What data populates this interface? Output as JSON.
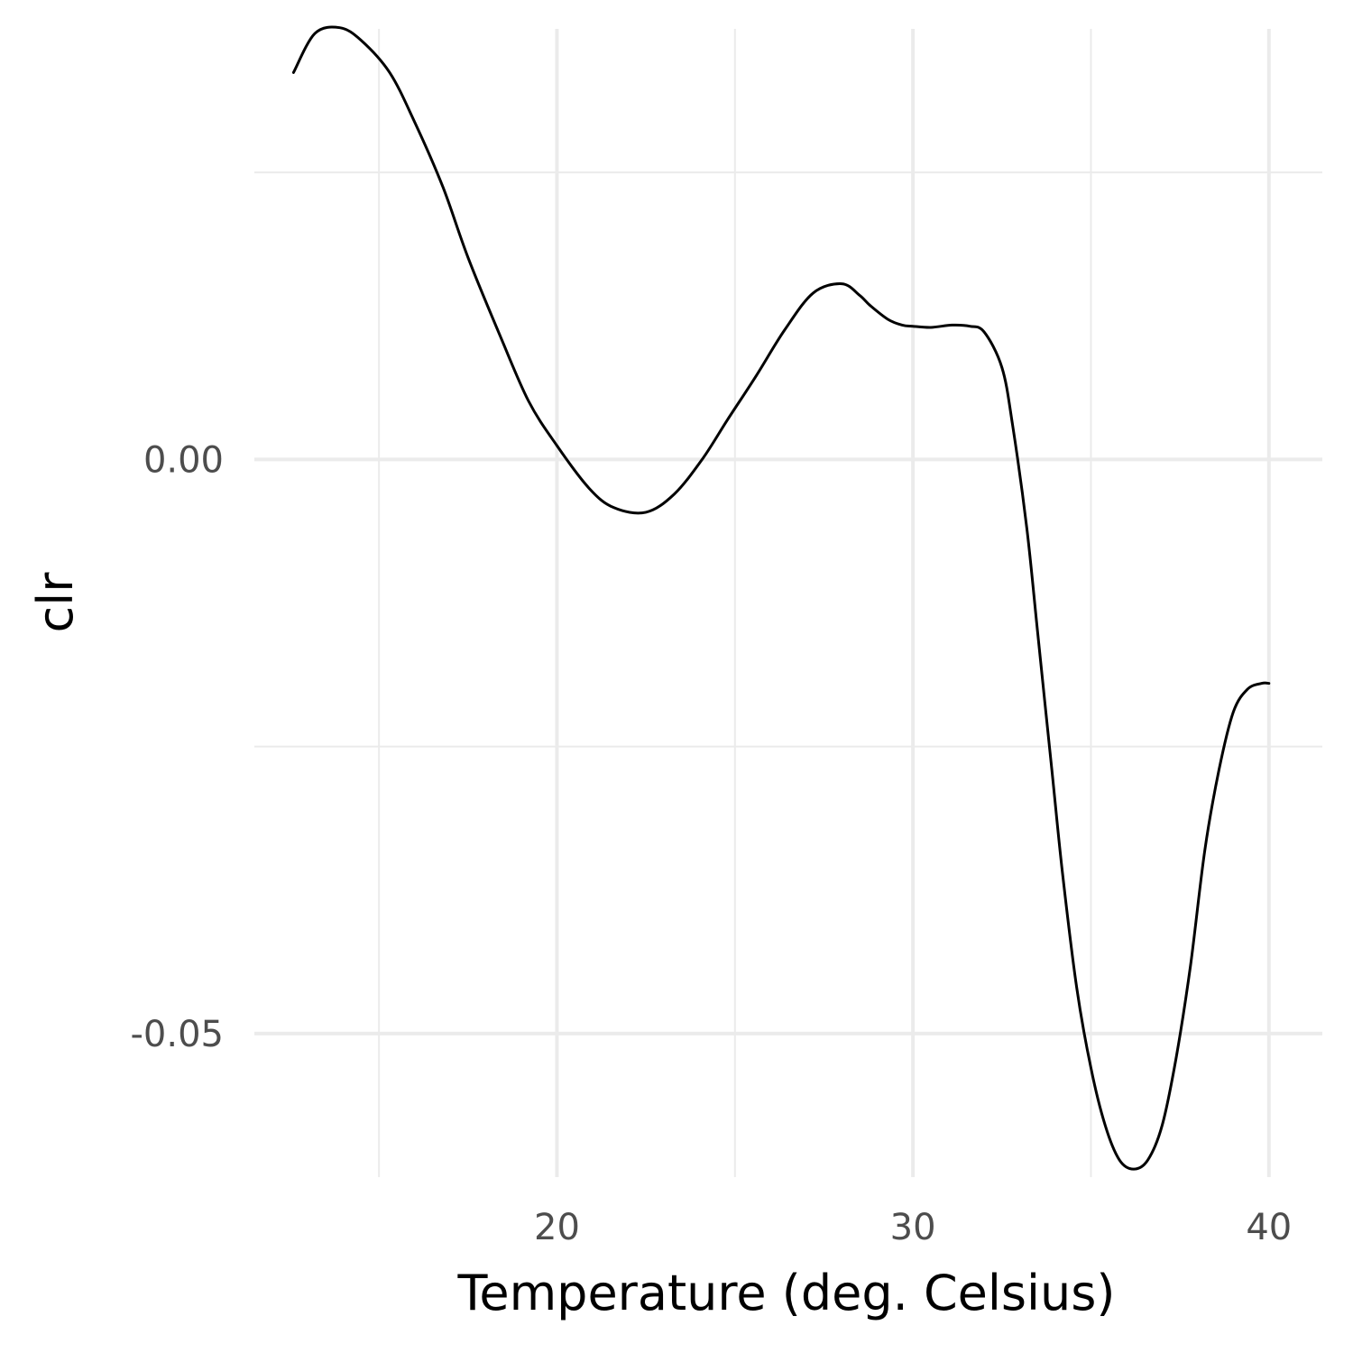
{
  "chart_data": {
    "type": "line",
    "title": "",
    "xlabel": "Temperature (deg. Celsius)",
    "ylabel": "clr",
    "xlim": [
      11.5,
      41.5
    ],
    "ylim": [
      -0.0625,
      0.0375
    ],
    "x_major_ticks": [
      20,
      30,
      40
    ],
    "x_minor_ticks": [
      15,
      25,
      35
    ],
    "y_major_ticks": [
      0.0,
      -0.05
    ],
    "y_major_tick_labels": [
      "0.00",
      "-0.05"
    ],
    "y_minor_ticks": [
      0.025,
      -0.025
    ],
    "grid": true,
    "legend": "none",
    "colors": {
      "line": "#000000",
      "grid": "#ebebeb",
      "tick_text": "#4d4d4d",
      "background": "#ffffff"
    },
    "series": [
      {
        "x": [
          12.6,
          13.2,
          13.9,
          14.5,
          15.3,
          16.0,
          16.8,
          17.5,
          18.4,
          19.2,
          20.0,
          20.9,
          21.6,
          22.5,
          23.3,
          24.1,
          24.8,
          25.6,
          26.4,
          27.2,
          28.0,
          28.5,
          28.8,
          29.3,
          29.7,
          30.0,
          30.5,
          31.1,
          31.6,
          32.0,
          32.5,
          32.8,
          33.2,
          33.5,
          33.9,
          34.2,
          34.6,
          35.0,
          35.4,
          35.8,
          36.2,
          36.6,
          37.0,
          37.4,
          37.8,
          38.2,
          38.6,
          39.0,
          39.4,
          39.8,
          40.0
        ],
        "y": [
          0.0337,
          0.0371,
          0.0376,
          0.0365,
          0.0337,
          0.0294,
          0.0237,
          0.0176,
          0.0108,
          0.0051,
          0.0012,
          -0.0025,
          -0.0042,
          -0.0046,
          -0.003,
          0.0001,
          0.0035,
          0.0073,
          0.0113,
          0.0145,
          0.0153,
          0.0143,
          0.0134,
          0.0122,
          0.0117,
          0.0116,
          0.0115,
          0.0117,
          0.0116,
          0.0111,
          0.008,
          0.003,
          -0.006,
          -0.015,
          -0.027,
          -0.036,
          -0.046,
          -0.053,
          -0.058,
          -0.061,
          -0.0618,
          -0.061,
          -0.058,
          -0.052,
          -0.044,
          -0.034,
          -0.027,
          -0.022,
          -0.02,
          -0.0195,
          -0.0195
        ]
      }
    ]
  }
}
